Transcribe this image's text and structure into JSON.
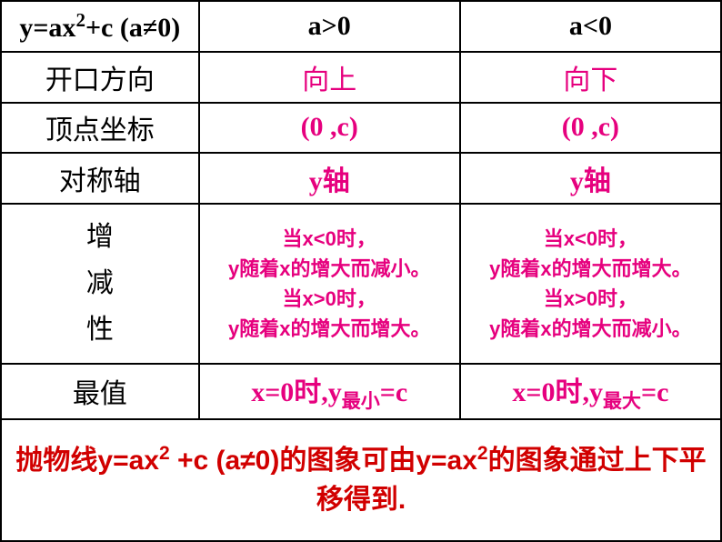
{
  "header": {
    "formula_html": "y=ax<span class='sup'>2</span>+c (a≠0)",
    "a_pos": "a>0",
    "a_neg": "a<0"
  },
  "rows": {
    "direction": {
      "label": "开口方向",
      "pos": "向上",
      "neg": "向下"
    },
    "vertex": {
      "label": "顶点坐标",
      "pos": "(0 ,c)",
      "neg": "(0 ,c)"
    },
    "axis": {
      "label": "对称轴",
      "pos": "y轴",
      "neg": "y轴"
    },
    "monotone": {
      "label": "增<br>减<br>性",
      "pos": "当x<0时，<br>y随着x的增大而减小。<br>当x>0时，<br>y随着x的增大而增大。",
      "neg": "当x<0时，<br>y随着x的增大而增大。<br>当x>0时，<br>y随着x的增大而减小。"
    },
    "extreme": {
      "label": "最值",
      "pos": "x=0时,y<span class='sub'>最小</span>=c",
      "neg": "x=0时,y<span class='sub'>最大</span>=c"
    }
  },
  "translation": "抛物线y=ax<span class='sup'>2</span> +c (a≠0)的图象可由y=ax<span class='sup'>2</span>的图象通过上下平移得到."
}
